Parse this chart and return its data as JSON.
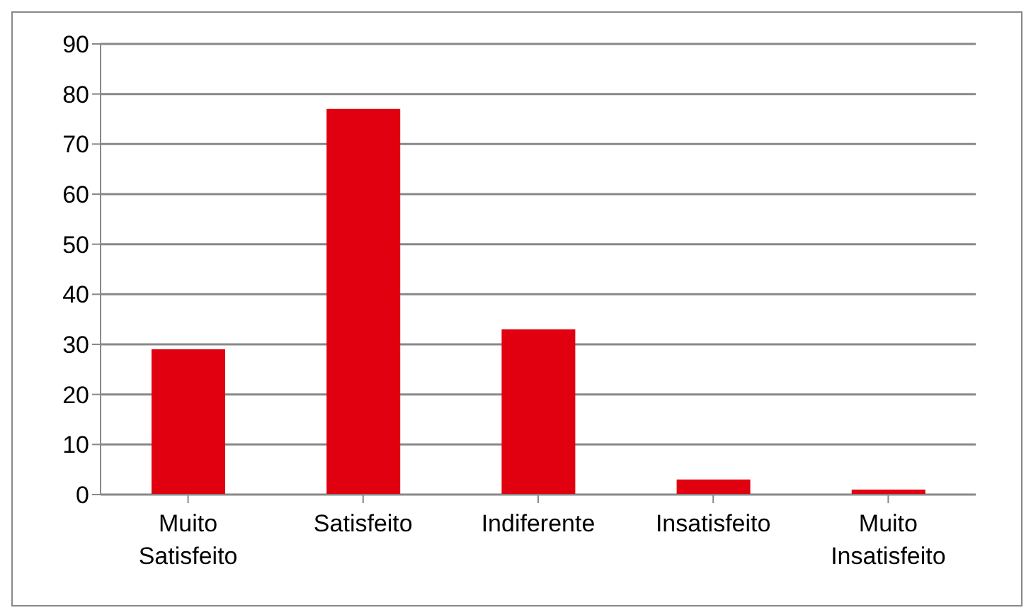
{
  "chart_data": {
    "type": "bar",
    "categories": [
      "Muito Satisfeito",
      "Satisfeito",
      "Indiferente",
      "Insatisfeito",
      "Muito Insatisfeito"
    ],
    "values": [
      29,
      77,
      33,
      3,
      1
    ],
    "color": "#e00010",
    "ylim": [
      0,
      90
    ],
    "yticks": [
      0,
      10,
      20,
      30,
      40,
      50,
      60,
      70,
      80,
      90
    ],
    "grid": "y"
  }
}
